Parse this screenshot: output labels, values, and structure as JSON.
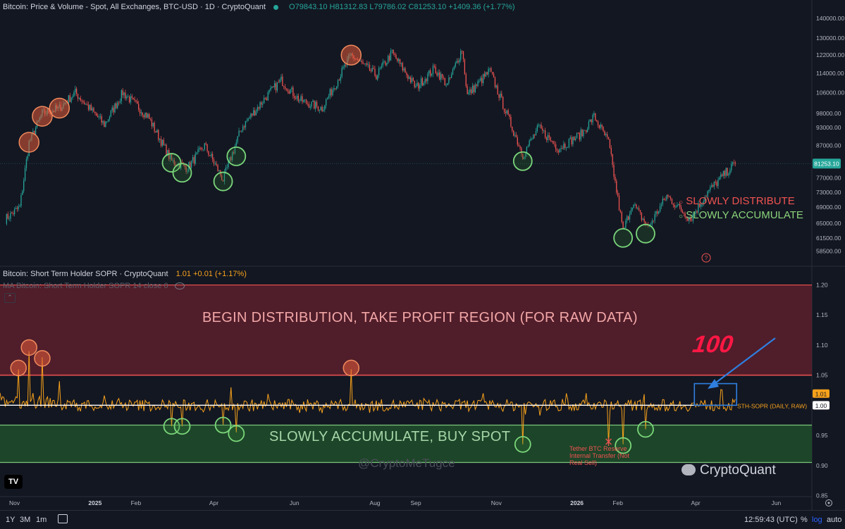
{
  "header": {
    "symbol_title": "Bitcoin: Price & Volume - Spot, All Exchanges, BTC-USD · 1D · CryptoQuant",
    "ohlc": "O79843.10  H81312.83  L79786.02  C81253.10  +1409.36 (+1.77%)"
  },
  "sopr_pane": {
    "title": "Bitcoin: Short Term Holder SOPR · CryptoQuant",
    "value": "1.01  +0.01 (+1.17%)",
    "ma_title": "MA Bitcoin: Short Term Holder SOPR 14 close 0",
    "collapse_icon": "chevron-up-icon"
  },
  "annotations": {
    "distribution_region": "BEGIN DISTRIBUTION, TAKE PROFIT REGION (FOR RAW DATA)",
    "accumulate_region": "SLOWLY ACCUMULATE, BUY SPOT",
    "legend_distribute": "SLOWLY DISTRIBUTE",
    "legend_accumulate": "SLOWLY ACCUMULATE",
    "sth_label": "STH-SOPR (DAILY, RAW)",
    "hundred": "100",
    "tether_note": "Tether BTC Reserve Internal Transfer (Not Real Sell)",
    "watermark": "@CryptoMeTugce",
    "brand": "CryptoQuant",
    "tv_logo": "TV"
  },
  "colors": {
    "background": "#131722",
    "up": "#26a69a",
    "down": "#ef5350",
    "sopr_line": "#f7a21b",
    "distribute_zone": "#5c1f2b",
    "accumulate_zone": "#1f4a2a",
    "distribute_circle": "#e35b3a",
    "accumulate_circle": "#7bd67b",
    "arrow": "#2f7fe0"
  },
  "bottom_bar": {
    "ranges": [
      "1Y",
      "3M",
      "1m"
    ],
    "calendar_icon": "calendar-icon",
    "clock": "12:59:43 (UTC)",
    "percent": "%",
    "log": "log",
    "auto": "auto"
  },
  "chart_data": [
    {
      "type": "candlestick",
      "title": "Bitcoin: Price & Volume - Spot, All Exchanges, BTC-USD · 1D · CryptoQuant",
      "scale": "log",
      "y_ticks": [
        140000,
        130000,
        122000,
        114000,
        106000,
        98000,
        93000,
        87000,
        81253.1,
        77000,
        73000,
        69000,
        65000,
        61500,
        58500
      ],
      "y_tick_labels": [
        "140000.00",
        "130000.00",
        "122000.00",
        "114000.00",
        "106000.00",
        "98000.00",
        "93000.00",
        "87000.00",
        "81253.10",
        "77000.00",
        "73000.00",
        "69000.00",
        "65000.00",
        "61500.00",
        "58500.00"
      ],
      "last_price": 81253.1,
      "x_labels": [
        "Nov",
        "2025",
        "Feb",
        "Apr",
        "Jun",
        "Aug",
        "Sep",
        "Nov",
        "2026",
        "Feb",
        "Apr",
        "Jun"
      ],
      "path_points": [
        [
          "2024-10-25",
          66000
        ],
        [
          "2024-11-05",
          69000
        ],
        [
          "2024-11-12",
          88000
        ],
        [
          "2024-11-22",
          98000
        ],
        [
          "2024-12-05",
          100000
        ],
        [
          "2024-12-17",
          106000
        ],
        [
          "2025-01-08",
          94000
        ],
        [
          "2025-01-22",
          106000
        ],
        [
          "2025-02-10",
          97000
        ],
        [
          "2025-02-28",
          82000
        ],
        [
          "2025-03-12",
          80000
        ],
        [
          "2025-03-25",
          87000
        ],
        [
          "2025-04-08",
          76500
        ],
        [
          "2025-04-22",
          93000
        ],
        [
          "2025-05-10",
          104000
        ],
        [
          "2025-05-22",
          111000
        ],
        [
          "2025-06-05",
          103000
        ],
        [
          "2025-06-22",
          100000
        ],
        [
          "2025-07-14",
          122000
        ],
        [
          "2025-08-02",
          113000
        ],
        [
          "2025-08-14",
          123000
        ],
        [
          "2025-09-01",
          108000
        ],
        [
          "2025-09-15",
          116000
        ],
        [
          "2025-09-25",
          109000
        ],
        [
          "2025-10-06",
          125000
        ],
        [
          "2025-10-10",
          105000
        ],
        [
          "2025-10-27",
          115000
        ],
        [
          "2025-11-21",
          84000
        ],
        [
          "2025-12-03",
          93000
        ],
        [
          "2025-12-18",
          86000
        ],
        [
          "2026-01-05",
          91000
        ],
        [
          "2026-01-14",
          97000
        ],
        [
          "2026-01-25",
          88000
        ],
        [
          "2026-02-05",
          63000
        ],
        [
          "2026-02-12",
          70000
        ],
        [
          "2026-02-24",
          64000
        ],
        [
          "2026-03-10",
          72000
        ],
        [
          "2026-03-28",
          66000
        ],
        [
          "2026-04-10",
          73000
        ],
        [
          "2026-04-25",
          79000
        ],
        [
          "2026-05-01",
          81253.1
        ]
      ],
      "distribute_markers": [
        [
          "2024-11-12",
          88000
        ],
        [
          "2024-11-22",
          97000
        ],
        [
          "2024-12-05",
          100000
        ],
        [
          "2025-07-14",
          122000
        ]
      ],
      "accumulate_markers": [
        [
          "2025-02-28",
          81500
        ],
        [
          "2025-03-08",
          78500
        ],
        [
          "2025-04-08",
          76000
        ],
        [
          "2025-04-18",
          83500
        ],
        [
          "2025-11-21",
          82000
        ],
        [
          "2026-02-05",
          61500
        ],
        [
          "2026-02-22",
          62500
        ]
      ],
      "legend": [
        "SLOWLY DISTRIBUTE",
        "SLOWLY ACCUMULATE"
      ]
    },
    {
      "type": "line",
      "title": "Bitcoin: Short Term Holder SOPR · CryptoQuant",
      "series": [
        {
          "name": "STH-SOPR (DAILY, RAW)"
        }
      ],
      "y_ticks": [
        1.2,
        1.15,
        1.1,
        1.05,
        1.0,
        0.95,
        0.9,
        0.85
      ],
      "y_tick_labels": [
        "1.20",
        "1.15",
        "1.10",
        "1.05",
        "1.00",
        "0.95",
        "0.90",
        "0.85"
      ],
      "ylim": [
        0.84,
        1.21
      ],
      "current_value": 1.01,
      "reference_line": 1.0,
      "distribution_zone": [
        1.05,
        1.2
      ],
      "accumulation_zone": [
        0.905,
        0.967
      ],
      "spikes": [
        [
          "2024-11-04",
          1.06
        ],
        [
          "2024-11-12",
          1.09
        ],
        [
          "2024-11-22",
          1.08
        ],
        [
          "2024-12-05",
          1.04
        ],
        [
          "2025-02-28",
          0.965
        ],
        [
          "2025-03-08",
          0.965
        ],
        [
          "2025-04-08",
          0.967
        ],
        [
          "2025-04-18",
          0.955
        ],
        [
          "2025-07-14",
          1.06
        ],
        [
          "2025-11-21",
          0.935
        ],
        [
          "2026-01-25",
          0.935
        ],
        [
          "2026-02-05",
          0.935
        ],
        [
          "2026-02-22",
          0.96
        ]
      ],
      "distribute_markers": [
        [
          "2024-11-04",
          1.062
        ],
        [
          "2024-11-12",
          1.096
        ],
        [
          "2024-11-22",
          1.078
        ],
        [
          "2025-07-14",
          1.062
        ]
      ],
      "accumulate_markers": [
        [
          "2025-02-28",
          0.965
        ],
        [
          "2025-03-08",
          0.965
        ],
        [
          "2025-04-08",
          0.967
        ],
        [
          "2025-04-18",
          0.953
        ],
        [
          "2025-11-21",
          0.935
        ],
        [
          "2026-02-05",
          0.933
        ],
        [
          "2026-02-22",
          0.96
        ]
      ]
    }
  ]
}
